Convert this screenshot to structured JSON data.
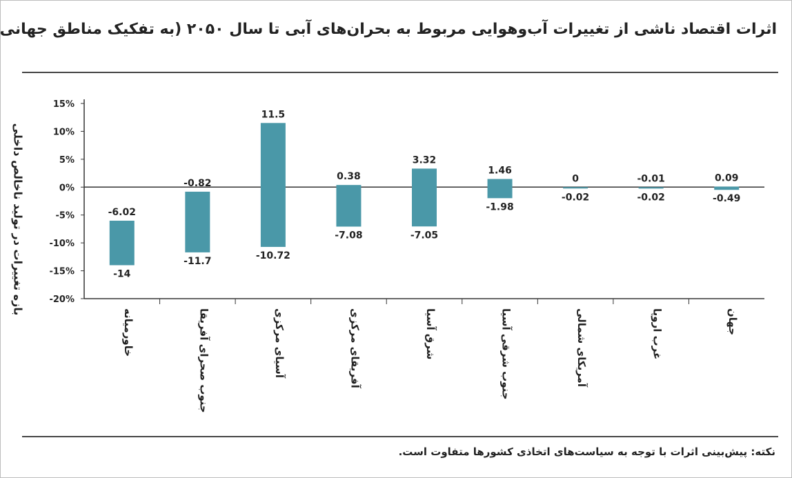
{
  "title": "اثرات اقتصاد ناشی از تغییرات آب‌وهوایی مربوط به بحران‌های آبی تا سال ۲۰۵۰ (به تفکیک مناطق جهانی)",
  "note": "نکته: پیش‌بینی اثرات با توجه به سیاست‌های اتخاذی کشورها متفاوت است.",
  "colors": {
    "bar": "#4a98a8",
    "axis": "#333333",
    "label": "#222222"
  },
  "chart_data": {
    "type": "bar",
    "ylabel": "بازه تغییرات در تولید ناخالص داخلی",
    "ylim": [
      -20,
      15
    ],
    "yticks": [
      15,
      10,
      5,
      0,
      -5,
      -10,
      -15,
      -20
    ],
    "ytick_labels": [
      "15%",
      "10%",
      "5%",
      "0%",
      "-5%",
      "-10%",
      "-15%",
      "-20%"
    ],
    "categories": [
      "خاورمیانه",
      "جنوب صحرای آفریقا",
      "آسیای مرکزی",
      "آفریقای مرکزی",
      "شرق آسیا",
      "جنوب شرقی آسیا",
      "آمریکای شمالی",
      "غرب اروپا",
      "جهان"
    ],
    "max_values": [
      -6.02,
      -0.82,
      11.5,
      0.38,
      3.32,
      1.46,
      0,
      -0.01,
      0.09
    ],
    "min_values": [
      -14,
      -11.7,
      -10.72,
      -7.08,
      -7.05,
      -1.98,
      -0.02,
      -0.02,
      -0.49
    ],
    "max_labels": [
      "-6.02",
      "-0.82",
      "11.5",
      "0.38",
      "3.32",
      "1.46",
      "0",
      "-0.01",
      "0.09"
    ],
    "min_labels": [
      "-14",
      "-11.7",
      "-10.72",
      "-7.08",
      "-7.05",
      "-1.98",
      "-0.02",
      "-0.02",
      "-0.49"
    ],
    "grid": false,
    "legend": "none"
  }
}
